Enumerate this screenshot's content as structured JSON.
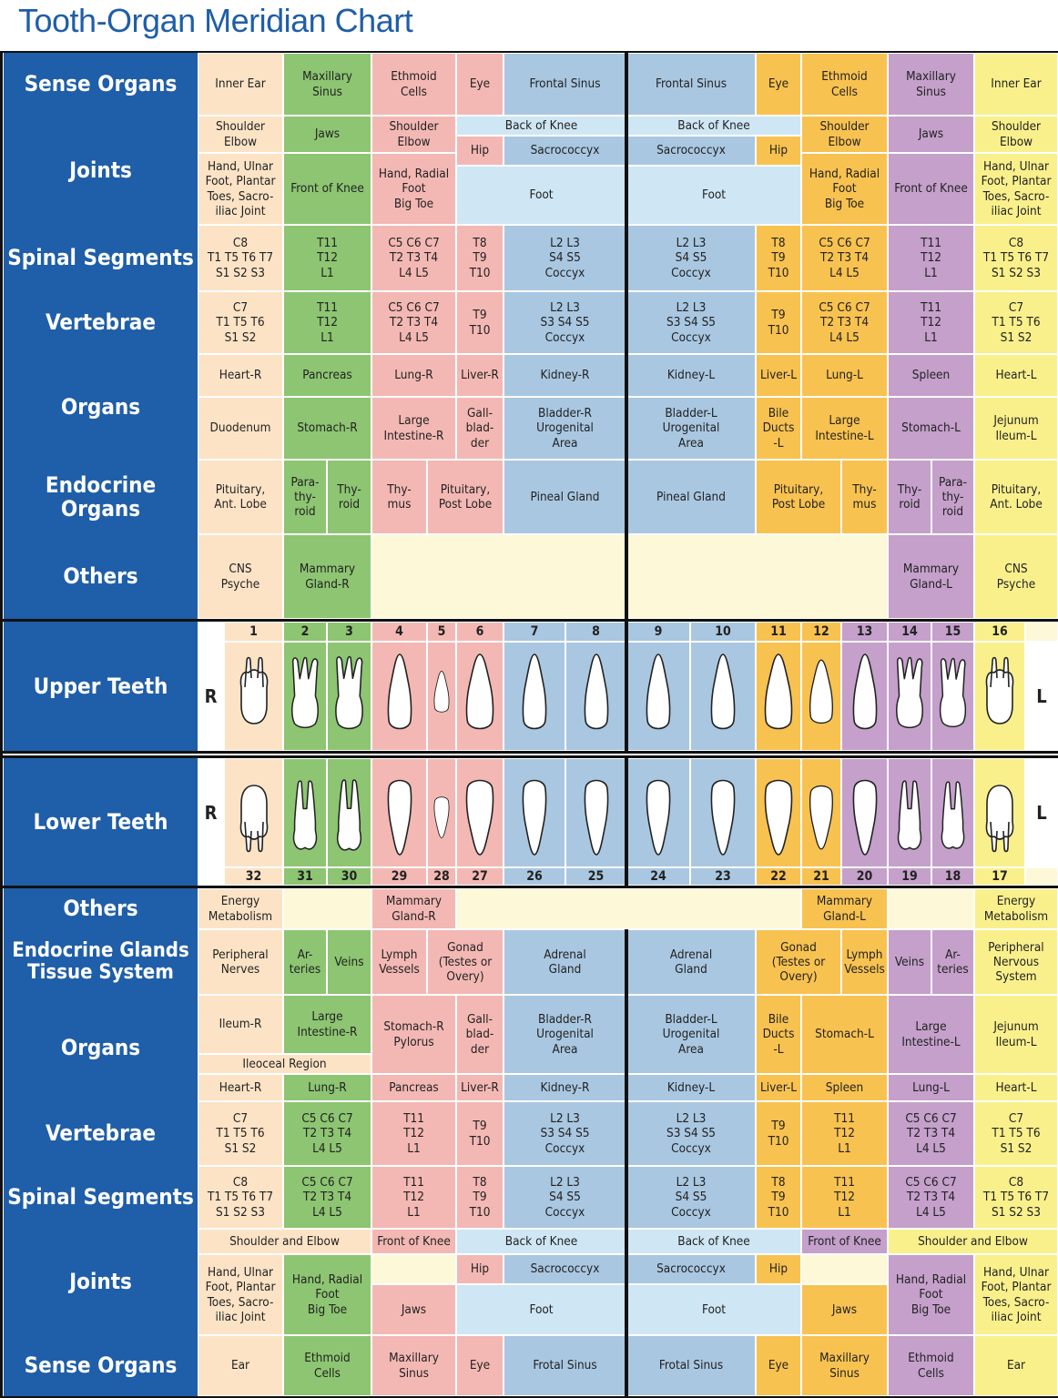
{
  "title": "Tooth-Organ Meridian Chart",
  "colors": {
    "header": "#1f5ea8",
    "peach": "#fce3c6",
    "green": "#8dc572",
    "pink": "#f3b8b4",
    "blue": "#a9c7e1",
    "lightblue": "#cfe6f4",
    "orange": "#f8c250",
    "purple": "#c4a0cb",
    "yellow": "#f9f08c",
    "cream": "#fdf8d8",
    "white": "#ffffff"
  },
  "headers": {
    "top_sense": "Sense Organs",
    "top_joints": "Joints",
    "top_spinal": "Spinal Segments",
    "top_vertebrae": "Vertebrae",
    "top_organs": "Organs",
    "top_endocrine": "Endocrine Organs",
    "top_others": "Others",
    "upper_teeth": "Upper Teeth",
    "lower_teeth": "Lower Teeth",
    "bot_others": "Others",
    "bot_endocrine": "Endocrine Glands\nTissue System",
    "bot_organs": "Organs",
    "bot_vertebrae": "Vertebrae",
    "bot_spinal": "Spinal Segments",
    "bot_joints": "Joints",
    "bot_sense": "Sense Organs"
  },
  "sides": {
    "right": "R",
    "left": "L"
  },
  "upper_numbers": [
    "1",
    "2",
    "3",
    "4",
    "5",
    "6",
    "7",
    "8",
    "9",
    "10",
    "11",
    "12",
    "13",
    "14",
    "15",
    "16"
  ],
  "lower_numbers": [
    "32",
    "31",
    "30",
    "29",
    "28",
    "27",
    "26",
    "25",
    "24",
    "23",
    "22",
    "21",
    "20",
    "19",
    "18",
    "17"
  ],
  "top": {
    "sense": [
      "Inner Ear",
      "Maxillary\nSinus",
      "Ethmoid\nCells",
      "Eye",
      "Frontal Sinus",
      "Frontal Sinus",
      "Eye",
      "Ethmoid\nCells",
      "Maxillary\nSinus",
      "Inner Ear"
    ],
    "joints": {
      "shoulder_elbow": "Shoulder\nElbow",
      "jaws": "Jaws",
      "back_of_knee": "Back of Knee",
      "hip": "Hip",
      "sacrococcyx": "Sacrococcyx",
      "hand_ulnar": "Hand, Ulnar\nFoot, Plantar\nToes, Sacro-\niliac Joint",
      "front_of_knee": "Front of Knee",
      "hand_radial": "Hand, Radial\nFoot\nBig Toe",
      "foot": "Foot"
    },
    "spinal": [
      "C8\nT1 T5 T6 T7\nS1 S2 S3",
      "T11\nT12\nL1",
      "C5 C6 C7\nT2 T3 T4\nL4 L5",
      "T8\nT9\nT10",
      "L2 L3\nS4 S5\nCoccyx"
    ],
    "vertebrae": [
      "C7\nT1 T5 T6\nS1 S2",
      "T11\nT12\nL1",
      "C5 C6 C7\nT2 T3 T4\nL4 L5",
      "T9\nT10",
      "L2 L3\nS3 S4 S5\nCoccyx"
    ],
    "organs_row1": [
      "Heart-R",
      "Pancreas",
      "Lung-R",
      "Liver-R",
      "Kidney-R",
      "Kidney-L",
      "Liver-L",
      "Lung-L",
      "Spleen",
      "Heart-L"
    ],
    "organs_row2": [
      "Duodenum",
      "Stomach-R",
      "Large\nIntestine-R",
      "Gall-\nblad-\nder",
      "Bladder-R\nUrogenital\nArea",
      "Bladder-L\nUrogenital\nArea",
      "Bile\nDucts\n-L",
      "Large\nIntestine-L",
      "Stomach-L",
      "Jejunum\nIleum-L"
    ],
    "endocrine": {
      "pit_ant": "Pituitary,\nAnt. Lobe",
      "parathyroid": "Para-\nthy-\nroid",
      "thyroid": "Thy-\nroid",
      "thymus": "Thy-\nmus",
      "pit_post": "Pituitary,\nPost Lobe",
      "pineal": "Pineal Gland"
    },
    "others": {
      "cns": "CNS\nPsyche",
      "mammary_r": "Mammary\nGland-R",
      "mammary_l": "Mammary\nGland-L"
    }
  },
  "bottom": {
    "others": {
      "energy": "Energy\nMetabolism",
      "mammary_r": "Mammary\nGland-R",
      "mammary_l": "Mammary\nGland-L"
    },
    "endocrine": {
      "peripheral_r": "Peripheral\nNerves",
      "arteries": "Ar-\nteries",
      "veins": "Veins",
      "lymph_r": "Lymph\nVessels",
      "gonad": "Gonad\n(Testes or\nOvery)",
      "adrenal": "Adrenal\nGland",
      "lymph_l": "Lymph\nVessels",
      "peripheral_l": "Peripheral\nNervous\nSystem"
    },
    "organs": {
      "ileum_r": "Ileum-R",
      "large_int_r": "Large\nIntestine-R",
      "ileocecal": "Ileoceal Region",
      "stomach_r": "Stomach-R\nPylorus",
      "gallbladder": "Gall-\nblad-\nder",
      "bladder_r": "Bladder-R\nUrogenital\nArea",
      "bladder_l": "Bladder-L\nUrogenital\nArea",
      "bile": "Bile\nDucts\n-L",
      "stomach_l": "Stomach-L",
      "large_int_l": "Large\nIntestine-L",
      "jejunum": "Jejunum\nIleum-L"
    },
    "organs_row2": [
      "Heart-R",
      "Lung-R",
      "Pancreas",
      "Liver-R",
      "Kidney-R",
      "Kidney-L",
      "Liver-L",
      "Spleen",
      "Lung-L",
      "Heart-L"
    ],
    "vertebrae": [
      "C7\nT1 T5 T6\nS1 S2",
      "C5 C6 C7\nT2 T3 T4\nL4 L5",
      "T11\nT12\nL1",
      "T9\nT10",
      "L2 L3\nS3 S4 S5\nCoccyx"
    ],
    "spinal": [
      "C8\nT1 T5 T6 T7\nS1 S2 S3",
      "C5 C6 C7\nT2 T3 T4\nL4 L5",
      "T11\nT12\nL1",
      "T8\nT9\nT10",
      "L2 L3\nS4 S5\nCoccyx"
    ],
    "joints": {
      "shoulder_and_elbow": "Shoulder and Elbow",
      "front_of_knee": "Front of Knee",
      "back_of_knee": "Back of Knee",
      "hip": "Hip",
      "sacrococcyx": "Sacrococcyx",
      "hand_ulnar": "Hand, Ulnar\nFoot, Plantar\nToes, Sacro-\niliac Joint",
      "hand_radial": "Hand, Radial\nFoot\nBig Toe",
      "jaws": "Jaws",
      "foot": "Foot"
    },
    "sense": [
      "Ear",
      "Ethmoid\nCells",
      "Maxillary\nSinus",
      "Eye",
      "Frotal Sinus",
      "Frotal Sinus",
      "Eye",
      "Maxillary\nSinus",
      "Ethmoid\nCells",
      "Ear"
    ]
  }
}
